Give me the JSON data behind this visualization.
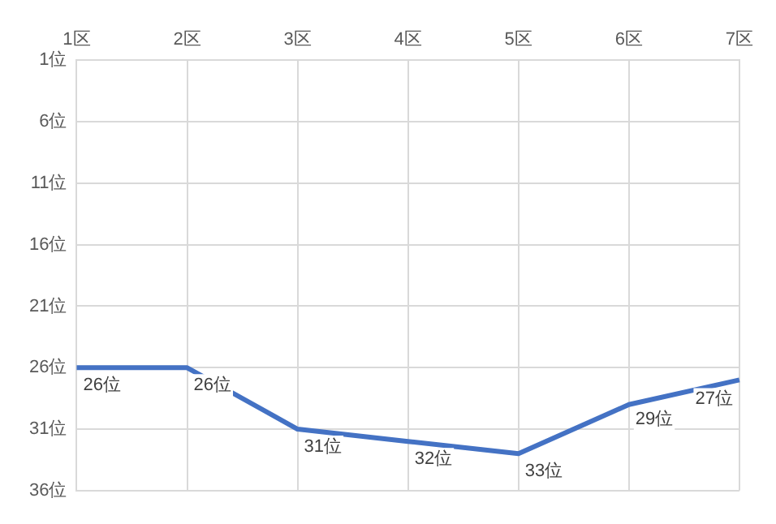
{
  "chart_data": {
    "type": "line",
    "categories": [
      "1区",
      "2区",
      "3区",
      "4区",
      "5区",
      "6区",
      "7区"
    ],
    "series": [
      {
        "color": "#4472c4",
        "values": [
          26,
          26,
          31,
          32,
          33,
          29,
          27
        ],
        "value_labels": [
          "26位",
          "26位",
          "31位",
          "32位",
          "33位",
          "29位",
          "27位"
        ]
      }
    ],
    "ylim": [
      36,
      1
    ],
    "yticks": [
      {
        "value": 1,
        "label": "1位"
      },
      {
        "value": 6,
        "label": "6位"
      },
      {
        "value": 11,
        "label": "11位"
      },
      {
        "value": 16,
        "label": "16位"
      },
      {
        "value": 21,
        "label": "21位"
      },
      {
        "value": 26,
        "label": "26位"
      },
      {
        "value": 31,
        "label": "31位"
      },
      {
        "value": 36,
        "label": "36位"
      }
    ],
    "grid": true,
    "legend": false,
    "marker": "none",
    "line_style": "solid"
  }
}
